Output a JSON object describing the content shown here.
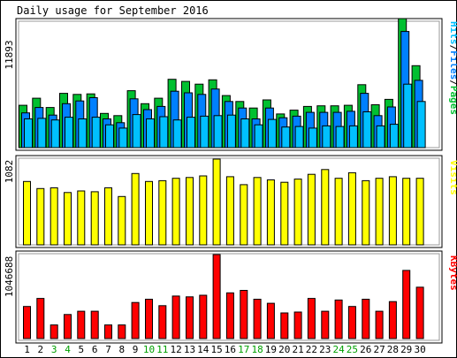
{
  "title": "Daily usage for September 2016",
  "colors": {
    "hits": "#00c030",
    "files": "#0080ff",
    "pages": "#00c0ff",
    "visits": "#ffff00",
    "kbytes": "#ff0000",
    "weekend_day": "#00a000",
    "weekday": "#000000"
  },
  "chart_data": [
    {
      "type": "bar",
      "panel": "top",
      "ylabel_max": "11893",
      "legend": [
        "Pages",
        "Files",
        "Hits"
      ],
      "categories": [
        "1",
        "2",
        "3",
        "4",
        "5",
        "6",
        "7",
        "8",
        "9",
        "10",
        "11",
        "12",
        "13",
        "14",
        "15",
        "16",
        "17",
        "18",
        "19",
        "20",
        "21",
        "22",
        "23",
        "24",
        "25",
        "26",
        "27",
        "28",
        "29",
        "30"
      ],
      "ylim": [
        0,
        11893
      ],
      "series": [
        {
          "name": "Hits",
          "values": [
            3900,
            4550,
            3700,
            5000,
            4900,
            4950,
            3150,
            2950,
            5250,
            4050,
            4550,
            6300,
            6100,
            5850,
            6250,
            4800,
            4250,
            3650,
            4400,
            3100,
            3450,
            3800,
            3850,
            3850,
            3900,
            5800,
            3950,
            4450,
            11893,
            7550
          ]
        },
        {
          "name": "Files",
          "values": [
            3200,
            3700,
            3000,
            4050,
            4300,
            4600,
            2650,
            2300,
            4500,
            3500,
            3800,
            5200,
            5050,
            4900,
            5400,
            4250,
            3650,
            2650,
            3650,
            2750,
            2900,
            3250,
            3250,
            3250,
            3350,
            5000,
            2950,
            3750,
            10700,
            6200
          ]
        },
        {
          "name": "Pages",
          "values": [
            2650,
            2700,
            2550,
            2800,
            2650,
            2800,
            2100,
            1800,
            3050,
            2650,
            2850,
            2550,
            2800,
            2900,
            2950,
            3000,
            2650,
            2100,
            2600,
            1900,
            1950,
            1800,
            2000,
            1950,
            2000,
            3300,
            2000,
            2150,
            5850,
            4250
          ]
        }
      ]
    },
    {
      "type": "bar",
      "panel": "middle",
      "ylabel_max": "1082",
      "legend": [
        "Visits"
      ],
      "categories": [
        "1",
        "2",
        "3",
        "4",
        "5",
        "6",
        "7",
        "8",
        "9",
        "10",
        "11",
        "12",
        "13",
        "14",
        "15",
        "16",
        "17",
        "18",
        "19",
        "20",
        "21",
        "22",
        "23",
        "24",
        "25",
        "26",
        "27",
        "28",
        "29",
        "30"
      ],
      "ylim": [
        0,
        1082
      ],
      "series": [
        {
          "name": "Visits",
          "values": [
            800,
            710,
            720,
            660,
            680,
            670,
            720,
            610,
            900,
            800,
            810,
            840,
            850,
            870,
            1082,
            860,
            760,
            850,
            820,
            790,
            830,
            890,
            950,
            840,
            910,
            810,
            840,
            860,
            840,
            840
          ]
        }
      ]
    },
    {
      "type": "bar",
      "panel": "bottom",
      "ylabel_max": "1046688",
      "legend": [
        "KBytes"
      ],
      "categories": [
        "1",
        "2",
        "3",
        "4",
        "5",
        "6",
        "7",
        "8",
        "9",
        "10",
        "11",
        "12",
        "13",
        "14",
        "15",
        "16",
        "17",
        "18",
        "19",
        "20",
        "21",
        "22",
        "23",
        "24",
        "25",
        "26",
        "27",
        "28",
        "29",
        "30"
      ],
      "ylim": [
        0,
        1046688
      ],
      "series": [
        {
          "name": "KBytes",
          "values": [
            400000,
            500000,
            170000,
            300000,
            340000,
            340000,
            170000,
            170000,
            450000,
            490000,
            410000,
            530000,
            520000,
            540000,
            1046688,
            570000,
            600000,
            490000,
            440000,
            320000,
            330000,
            500000,
            340000,
            480000,
            400000,
            490000,
            340000,
            460000,
            850000,
            640000
          ]
        }
      ]
    }
  ],
  "x_day_labels": [
    "1",
    "2",
    "3",
    "4",
    "5",
    "6",
    "7",
    "8",
    "9",
    "10",
    "11",
    "12",
    "13",
    "14",
    "15",
    "16",
    "17",
    "18",
    "19",
    "20",
    "21",
    "22",
    "23",
    "24",
    "25",
    "26",
    "27",
    "28",
    "29",
    "30"
  ],
  "weekend_days": [
    3,
    4,
    10,
    11,
    17,
    18,
    24,
    25
  ]
}
